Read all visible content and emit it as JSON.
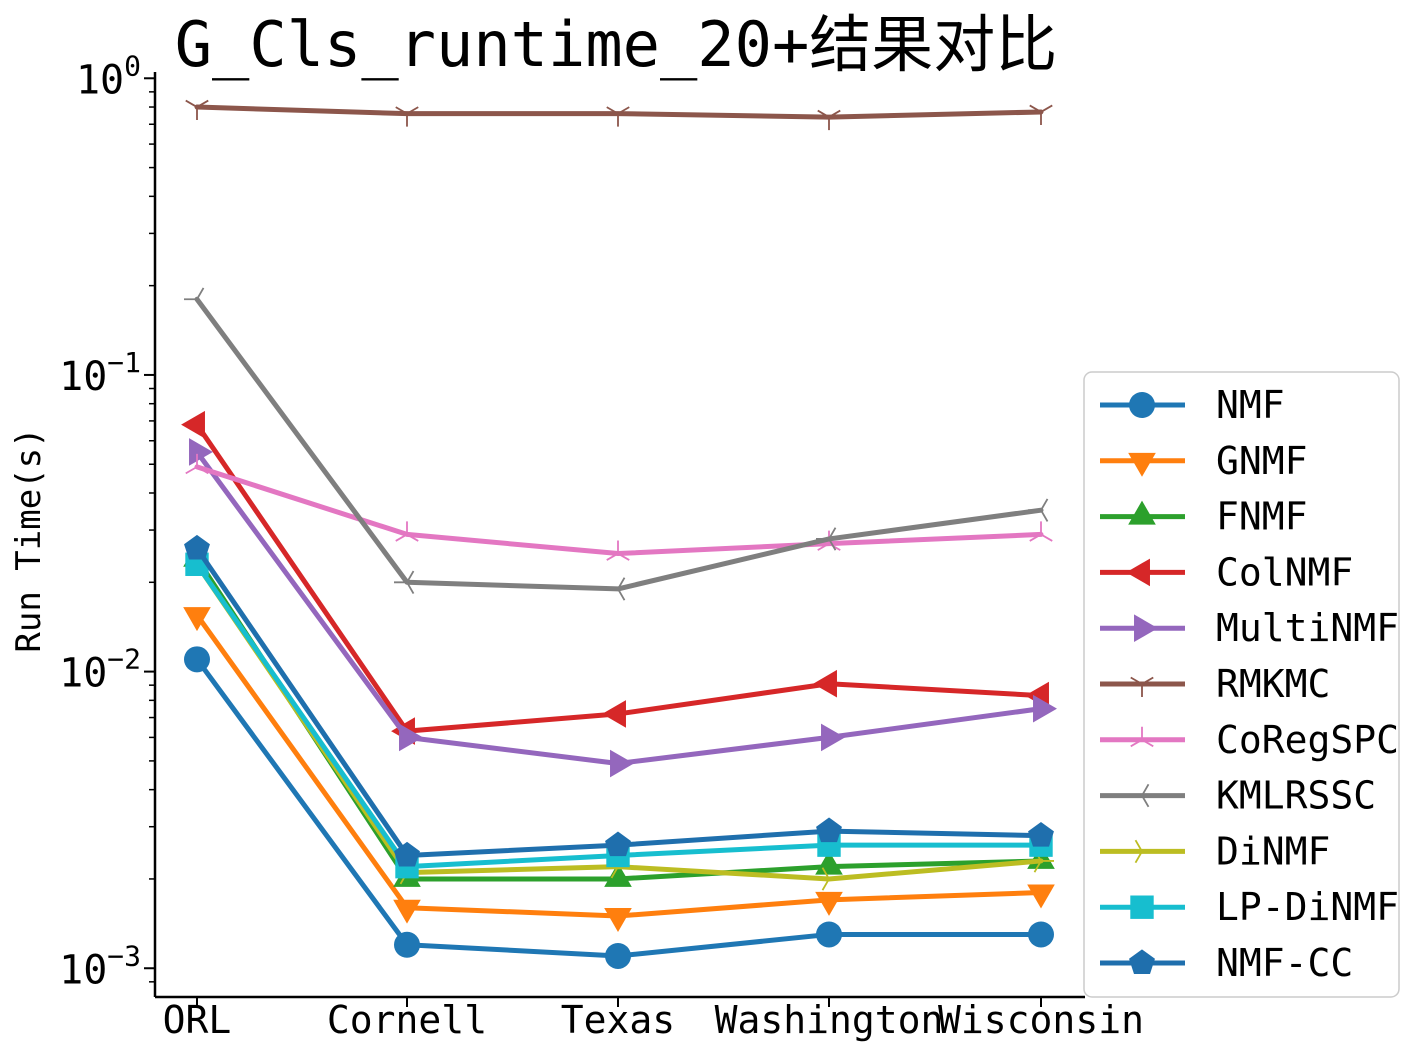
{
  "chart_data": {
    "type": "line",
    "title": "G_Cls_runtime_20+结果对比",
    "xlabel": "",
    "ylabel": "Run Time(s)",
    "yscale": "log",
    "ylim": [
      0.0008,
      1.05
    ],
    "yticks": [
      {
        "value": 1,
        "base": "10",
        "exp": "0"
      },
      {
        "value": 0.1,
        "base": "10",
        "exp": "−1"
      },
      {
        "value": 0.01,
        "base": "10",
        "exp": "−2"
      },
      {
        "value": 0.001,
        "base": "10",
        "exp": "−3"
      }
    ],
    "categories": [
      "ORL",
      "Cornell",
      "Texas",
      "Washington",
      "Wisconsin"
    ],
    "legend_position": "lower-right outside",
    "series": [
      {
        "name": "NMF",
        "color": "#1f77b4",
        "marker": "circle",
        "values": [
          0.011,
          0.0012,
          0.0011,
          0.0013,
          0.0013
        ]
      },
      {
        "name": "GNMF",
        "color": "#ff7f0e",
        "marker": "triangle-down",
        "values": [
          0.0155,
          0.0016,
          0.0015,
          0.0017,
          0.0018
        ]
      },
      {
        "name": "FNMF",
        "color": "#2ca02c",
        "marker": "triangle-up",
        "values": [
          0.024,
          0.002,
          0.002,
          0.0022,
          0.0023
        ]
      },
      {
        "name": "ColNMF",
        "color": "#d62728",
        "marker": "triangle-left",
        "values": [
          0.068,
          0.0063,
          0.0072,
          0.0091,
          0.0083
        ]
      },
      {
        "name": "MultiNMF",
        "color": "#9467bd",
        "marker": "triangle-right",
        "values": [
          0.055,
          0.006,
          0.0049,
          0.006,
          0.0075
        ]
      },
      {
        "name": "RMKMC",
        "color": "#8c564b",
        "marker": "tri-down",
        "values": [
          0.8,
          0.76,
          0.76,
          0.74,
          0.77
        ]
      },
      {
        "name": "CoRegSPC",
        "color": "#e377c2",
        "marker": "tri-up",
        "values": [
          0.049,
          0.029,
          0.025,
          0.027,
          0.029
        ]
      },
      {
        "name": "KMLRSSC",
        "color": "#7f7f7f",
        "marker": "tri-left",
        "values": [
          0.18,
          0.02,
          0.019,
          0.028,
          0.035
        ]
      },
      {
        "name": "DiNMF",
        "color": "#bcbd22",
        "marker": "tri-right",
        "values": [
          0.023,
          0.0021,
          0.0022,
          0.002,
          0.0023
        ]
      },
      {
        "name": "LP-DiNMF",
        "color": "#17becf",
        "marker": "square",
        "values": [
          0.023,
          0.0022,
          0.0024,
          0.0026,
          0.0026
        ]
      },
      {
        "name": "NMF-CC",
        "color": "#1f6fad",
        "marker": "pentagon",
        "values": [
          0.026,
          0.0024,
          0.0026,
          0.0029,
          0.0028
        ]
      }
    ]
  }
}
